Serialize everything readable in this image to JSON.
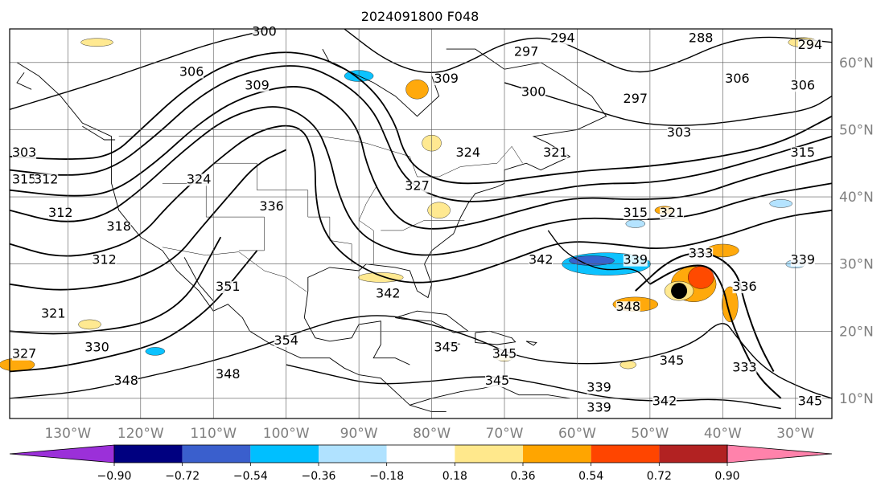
{
  "title": "2024091800 F048",
  "map": {
    "lat_range": [
      7,
      65
    ],
    "lon_range": [
      -138,
      -25
    ],
    "grid": true,
    "lat_labels": [
      {
        "lat": 60,
        "text": "60°N"
      },
      {
        "lat": 50,
        "text": "50°N"
      },
      {
        "lat": 40,
        "text": "40°N"
      },
      {
        "lat": 30,
        "text": "30°N"
      },
      {
        "lat": 20,
        "text": "20°N"
      },
      {
        "lat": 10,
        "text": "10°N"
      }
    ],
    "lon_labels": [
      {
        "lon": -130,
        "text": "130°W"
      },
      {
        "lon": -120,
        "text": "120°W"
      },
      {
        "lon": -110,
        "text": "110°W"
      },
      {
        "lon": -100,
        "text": "100°W"
      },
      {
        "lon": -90,
        "text": "90°W"
      },
      {
        "lon": -80,
        "text": "80°W"
      },
      {
        "lon": -70,
        "text": "70°W"
      },
      {
        "lon": -60,
        "text": "60°W"
      },
      {
        "lon": -50,
        "text": "50°W"
      },
      {
        "lon": -40,
        "text": "40°W"
      },
      {
        "lon": -30,
        "text": "30°W"
      }
    ],
    "contour_labels": [
      {
        "text": "300",
        "lon": -103,
        "lat": 64
      },
      {
        "text": "294",
        "lon": -62,
        "lat": 63
      },
      {
        "text": "297",
        "lon": -67,
        "lat": 61
      },
      {
        "text": "288",
        "lon": -43,
        "lat": 63
      },
      {
        "text": "294",
        "lon": -28,
        "lat": 62
      },
      {
        "text": "306",
        "lon": -113,
        "lat": 58
      },
      {
        "text": "309",
        "lon": -104,
        "lat": 56
      },
      {
        "text": "309",
        "lon": -78,
        "lat": 57
      },
      {
        "text": "300",
        "lon": -66,
        "lat": 55
      },
      {
        "text": "297",
        "lon": -52,
        "lat": 54
      },
      {
        "text": "306",
        "lon": -38,
        "lat": 57
      },
      {
        "text": "306",
        "lon": -29,
        "lat": 56
      },
      {
        "text": "303",
        "lon": -46,
        "lat": 49
      },
      {
        "text": "303",
        "lon": -136,
        "lat": 46
      },
      {
        "text": "315",
        "lon": -136,
        "lat": 42
      },
      {
        "text": "312",
        "lon": -133,
        "lat": 42
      },
      {
        "text": "324",
        "lon": -112,
        "lat": 42
      },
      {
        "text": "324",
        "lon": -75,
        "lat": 46
      },
      {
        "text": "327",
        "lon": -82,
        "lat": 41
      },
      {
        "text": "321",
        "lon": -63,
        "lat": 46
      },
      {
        "text": "315",
        "lon": -29,
        "lat": 46
      },
      {
        "text": "312",
        "lon": -131,
        "lat": 37
      },
      {
        "text": "318",
        "lon": -123,
        "lat": 35
      },
      {
        "text": "336",
        "lon": -102,
        "lat": 38
      },
      {
        "text": "315",
        "lon": -52,
        "lat": 37
      },
      {
        "text": "321",
        "lon": -47,
        "lat": 37
      },
      {
        "text": "312",
        "lon": -125,
        "lat": 30
      },
      {
        "text": "342",
        "lon": -65,
        "lat": 30
      },
      {
        "text": "339",
        "lon": -52,
        "lat": 30
      },
      {
        "text": "333",
        "lon": -43,
        "lat": 31
      },
      {
        "text": "339",
        "lon": -29,
        "lat": 30
      },
      {
        "text": "351",
        "lon": -108,
        "lat": 26
      },
      {
        "text": "342",
        "lon": -86,
        "lat": 25
      },
      {
        "text": "336",
        "lon": -37,
        "lat": 26
      },
      {
        "text": "321",
        "lon": -132,
        "lat": 22
      },
      {
        "text": "348",
        "lon": -53,
        "lat": 23
      },
      {
        "text": "354",
        "lon": -100,
        "lat": 18
      },
      {
        "text": "345",
        "lon": -78,
        "lat": 17
      },
      {
        "text": "345",
        "lon": -70,
        "lat": 16
      },
      {
        "text": "327",
        "lon": -136,
        "lat": 16
      },
      {
        "text": "330",
        "lon": -126,
        "lat": 17
      },
      {
        "text": "345",
        "lon": -47,
        "lat": 15
      },
      {
        "text": "348",
        "lon": -122,
        "lat": 12
      },
      {
        "text": "348",
        "lon": -108,
        "lat": 13
      },
      {
        "text": "333",
        "lon": -37,
        "lat": 14
      },
      {
        "text": "345",
        "lon": -71,
        "lat": 12
      },
      {
        "text": "339",
        "lon": -57,
        "lat": 11
      },
      {
        "text": "342",
        "lon": -48,
        "lat": 9
      },
      {
        "text": "339",
        "lon": -57,
        "lat": 8
      },
      {
        "text": "345",
        "lon": -28,
        "lat": 9
      }
    ],
    "cyclone_center": {
      "lon": -46,
      "lat": 26
    }
  },
  "colorbar": {
    "colors": [
      "#9b30d9",
      "#000080",
      "#3a5fcd",
      "#00bfff",
      "#b0e2ff",
      "#ffffff",
      "#ffe88c",
      "#ffa500",
      "#ff4500",
      "#b22222",
      "#ff82ab"
    ],
    "ticks": [
      "−0.90",
      "−0.72",
      "−0.54",
      "−0.36",
      "−0.18",
      "0.18",
      "0.36",
      "0.54",
      "0.72",
      "0.90"
    ]
  }
}
